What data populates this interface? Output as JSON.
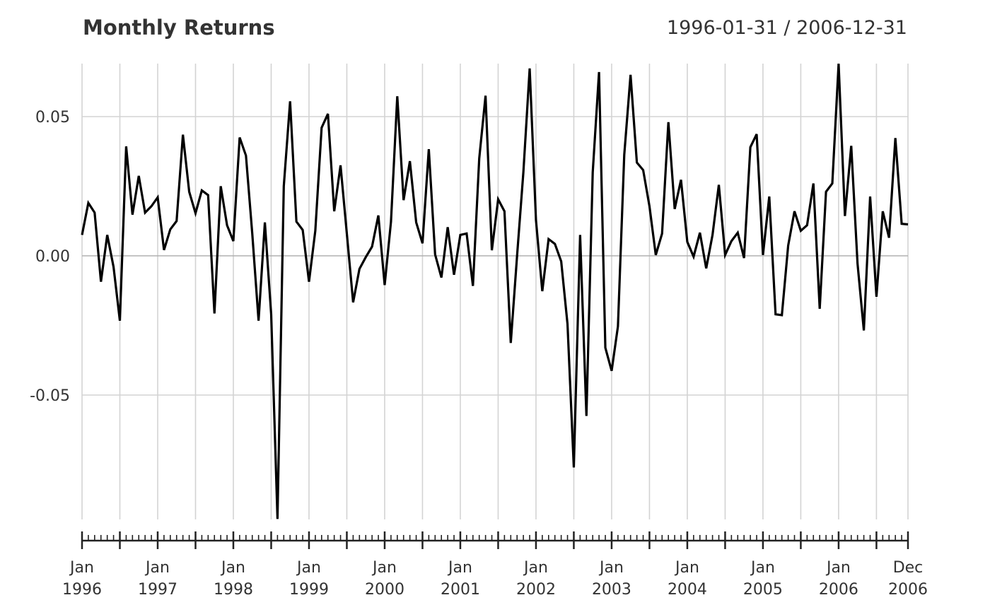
{
  "chart_data": {
    "type": "line",
    "title": "Monthly Returns",
    "date_range": "1996-01-31 / 2006-12-31",
    "ylim": [
      -0.0945,
      0.069
    ],
    "y_ticks": [
      0.05,
      0.0,
      -0.05
    ],
    "y_tick_labels": [
      "0.05",
      "0.00",
      "-0.05"
    ],
    "grid": true,
    "x_tick_labels": [
      {
        "date": "1996-01-31",
        "month": "Jan",
        "year": "1996"
      },
      {
        "date": "1997-01-31",
        "month": "Jan",
        "year": "1997"
      },
      {
        "date": "1998-01-31",
        "month": "Jan",
        "year": "1998"
      },
      {
        "date": "1999-01-31",
        "month": "Jan",
        "year": "1999"
      },
      {
        "date": "2000-01-31",
        "month": "Jan",
        "year": "2000"
      },
      {
        "date": "2001-01-31",
        "month": "Jan",
        "year": "2001"
      },
      {
        "date": "2002-01-31",
        "month": "Jan",
        "year": "2002"
      },
      {
        "date": "2003-01-31",
        "month": "Jan",
        "year": "2003"
      },
      {
        "date": "2004-01-31",
        "month": "Jan",
        "year": "2004"
      },
      {
        "date": "2005-01-31",
        "month": "Jan",
        "year": "2005"
      },
      {
        "date": "2006-01-31",
        "month": "Jan",
        "year": "2006"
      },
      {
        "date": "2006-12-31",
        "month": "Dec",
        "year": "2006"
      }
    ],
    "series": [
      {
        "start": "1996-01",
        "frequency": "monthly",
        "values": [
          0.0075,
          0.019,
          0.0155,
          -0.0093,
          0.0075,
          -0.004,
          -0.0233,
          0.0393,
          0.0148,
          0.0287,
          0.0155,
          0.0178,
          0.021,
          0.0021,
          0.0095,
          0.0125,
          0.0435,
          0.023,
          0.0153,
          0.0235,
          0.0218,
          -0.0207,
          0.025,
          0.011,
          0.0053,
          0.0425,
          0.036,
          0.008,
          -0.0233,
          0.012,
          -0.021,
          -0.0945,
          0.025,
          0.0555,
          0.0123,
          0.0093,
          -0.0093,
          0.009,
          0.046,
          0.051,
          0.016,
          0.0325,
          0.008,
          -0.0167,
          -0.0047,
          -0.0005,
          0.0033,
          0.0145,
          -0.0105,
          0.0122,
          0.0573,
          0.02,
          0.034,
          0.012,
          0.0045,
          0.0383,
          0.0005,
          -0.0078,
          0.0103,
          -0.0068,
          0.0075,
          0.008,
          -0.0108,
          0.035,
          0.0575,
          0.002,
          0.0203,
          0.016,
          -0.0313,
          0.0,
          0.03,
          0.0673,
          0.0128,
          -0.0127,
          0.006,
          0.0043,
          -0.002,
          -0.0245,
          -0.076,
          0.0075,
          -0.0575,
          0.03,
          0.066,
          -0.033,
          -0.0413,
          -0.0253,
          0.0363,
          0.065,
          0.0335,
          0.0308,
          0.0178,
          0.0003,
          0.008,
          0.048,
          0.0168,
          0.0273,
          0.005,
          -0.0003,
          0.0083,
          -0.0045,
          0.0075,
          0.0255,
          0.0003,
          0.0053,
          0.0083,
          -0.0008,
          0.039,
          0.0437,
          0.0003,
          0.0213,
          -0.021,
          -0.0213,
          0.0037,
          0.016,
          0.009,
          0.011,
          0.026,
          -0.019,
          0.023,
          0.026,
          0.069,
          0.0143,
          0.0395,
          -0.0028,
          -0.0268,
          0.0213,
          -0.0147,
          0.016,
          0.0065,
          0.0423,
          0.0115,
          0.0113
        ]
      }
    ]
  }
}
